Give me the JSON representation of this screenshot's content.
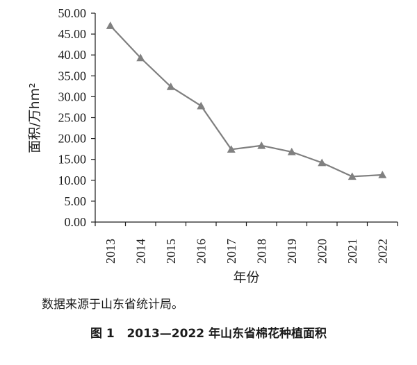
{
  "chart_data": {
    "type": "line",
    "categories": [
      "2013",
      "2014",
      "2015",
      "2016",
      "2017",
      "2018",
      "2019",
      "2020",
      "2021",
      "2022"
    ],
    "series": [
      {
        "values": [
          47.0,
          39.3,
          32.4,
          27.8,
          17.4,
          18.3,
          16.8,
          14.2,
          10.9,
          11.3
        ]
      }
    ],
    "title": "",
    "xlabel": "年份",
    "ylabel": "面积/万hm²",
    "ylim": [
      0,
      50
    ],
    "yticks": [
      "0.00",
      "5.00",
      "10.00",
      "15.00",
      "20.00",
      "25.00",
      "30.00",
      "35.00",
      "40.00",
      "45.00",
      "50.00"
    ],
    "grid": false,
    "marker": "triangle",
    "colors": {
      "line": "#7f7f7f",
      "marker": "#808080",
      "axis": "#1a1a1a"
    }
  },
  "source_note": "数据来源于山东省统计局。",
  "caption": "图 1   2013—2022 年山东省棉花种植面积"
}
